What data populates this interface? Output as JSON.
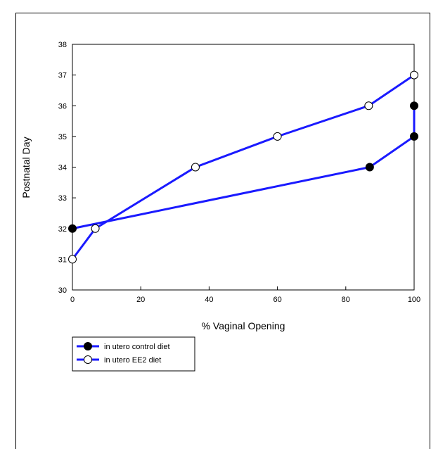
{
  "chart_data": {
    "type": "line",
    "xlabel": "% Vaginal Opening",
    "ylabel": "Postnatal Day",
    "xlim": [
      0,
      100
    ],
    "ylim": [
      30,
      38
    ],
    "xticks": [
      0,
      20,
      40,
      60,
      80,
      100
    ],
    "yticks": [
      30,
      31,
      32,
      33,
      34,
      35,
      36,
      37,
      38
    ],
    "grid": false,
    "legend_position": "bottom-left",
    "line_color": "#1a1aff",
    "series": [
      {
        "name": "in utero control diet",
        "marker_fill": "#000000",
        "points": [
          {
            "x": 0,
            "y": 32
          },
          {
            "x": 87,
            "y": 34
          },
          {
            "x": 100,
            "y": 35
          },
          {
            "x": 100,
            "y": 36
          }
        ]
      },
      {
        "name": "in utero EE2 diet",
        "marker_fill": "#ffffff",
        "points": [
          {
            "x": 0,
            "y": 31
          },
          {
            "x": 6.7,
            "y": 32
          },
          {
            "x": 36,
            "y": 34
          },
          {
            "x": 60,
            "y": 35
          },
          {
            "x": 86.7,
            "y": 36
          },
          {
            "x": 100,
            "y": 37
          }
        ]
      }
    ]
  }
}
